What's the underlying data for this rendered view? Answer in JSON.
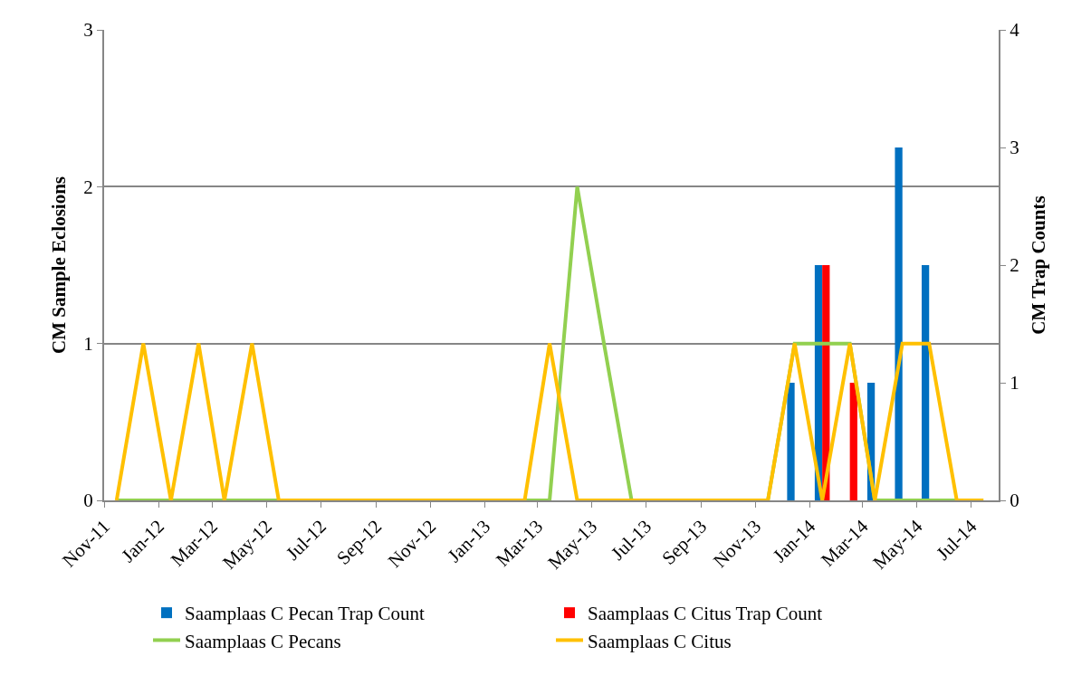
{
  "chart_data": {
    "type": "line",
    "ylabel": "CM Sample Eclosions",
    "y2label": "CM Trap Counts",
    "xlim": [
      "2011-11-01",
      "2014-08-01"
    ],
    "xticks": [
      {
        "value": "2011-11-01",
        "label": "Nov-11"
      },
      {
        "value": "2012-01-01",
        "label": "Jan-12"
      },
      {
        "value": "2012-03-01",
        "label": "Mar-12"
      },
      {
        "value": "2012-05-01",
        "label": "May-12"
      },
      {
        "value": "2012-07-01",
        "label": "Jul-12"
      },
      {
        "value": "2012-09-01",
        "label": "Sep-12"
      },
      {
        "value": "2012-11-01",
        "label": "Nov-12"
      },
      {
        "value": "2013-01-01",
        "label": "Jan-13"
      },
      {
        "value": "2013-03-01",
        "label": "Mar-13"
      },
      {
        "value": "2013-05-01",
        "label": "May-13"
      },
      {
        "value": "2013-07-01",
        "label": "Jul-13"
      },
      {
        "value": "2013-09-01",
        "label": "Sep-13"
      },
      {
        "value": "2013-11-01",
        "label": "Nov-13"
      },
      {
        "value": "2014-01-01",
        "label": "Jan-14"
      },
      {
        "value": "2014-03-01",
        "label": "Mar-14"
      },
      {
        "value": "2014-05-01",
        "label": "May-14"
      },
      {
        "value": "2014-07-01",
        "label": "Jul-14"
      }
    ],
    "ylim": [
      0,
      3
    ],
    "yticks": [
      0,
      1,
      2,
      3
    ],
    "y2lim": [
      0,
      4
    ],
    "y2ticks": [
      0,
      1,
      2,
      3,
      4
    ],
    "grid": "y",
    "legend": "bottom",
    "marker": "none",
    "line_style": "solid",
    "series": [
      {
        "name": "Saamplaas C Pecan Trap Count",
        "type": "bar",
        "axis": "y2",
        "color": "#0070c0",
        "x": [
          "2013-12-15",
          "2014-01-15",
          "2014-02-15",
          "2014-03-15",
          "2014-04-15",
          "2014-05-15"
        ],
        "values": [
          1,
          2,
          0,
          1,
          3,
          2
        ]
      },
      {
        "name": "Saamplaas C Citus Trap Count",
        "type": "bar",
        "axis": "y2",
        "color": "#ff0000",
        "x": [
          "2013-12-15",
          "2014-01-15",
          "2014-02-15",
          "2014-03-15",
          "2014-04-15",
          "2014-05-15"
        ],
        "values": [
          0,
          2,
          1,
          0,
          0,
          0
        ]
      },
      {
        "name": "Saamplaas C Pecans",
        "color": "#92d050",
        "x": [
          "2011-11-15",
          "2011-12-15",
          "2012-01-15",
          "2012-02-15",
          "2012-03-15",
          "2012-04-15",
          "2012-05-15",
          "2012-06-15",
          "2012-07-15",
          "2012-08-15",
          "2012-09-15",
          "2012-10-15",
          "2012-11-15",
          "2012-12-15",
          "2013-01-15",
          "2013-02-15",
          "2013-03-15",
          "2013-04-15",
          "2013-05-15",
          "2013-06-15",
          "2013-07-15",
          "2013-08-15",
          "2013-09-15",
          "2013-10-15",
          "2013-11-15",
          "2013-12-15",
          "2014-01-15",
          "2014-02-15",
          "2014-03-15",
          "2014-04-15",
          "2014-05-15",
          "2014-06-15"
        ],
        "values": [
          0,
          0,
          0,
          0,
          0,
          0,
          0,
          0,
          0,
          0,
          0,
          0,
          0,
          0,
          0,
          0,
          0,
          2,
          1,
          0,
          0,
          0,
          0,
          0,
          0,
          1,
          1,
          1,
          0,
          0,
          0,
          0
        ]
      },
      {
        "name": "Saamplaas C Citus",
        "color": "#ffc000",
        "x": [
          "2011-11-15",
          "2011-12-15",
          "2012-01-15",
          "2012-02-15",
          "2012-03-15",
          "2012-04-15",
          "2012-05-15",
          "2012-06-15",
          "2012-07-15",
          "2012-08-15",
          "2012-09-15",
          "2012-10-15",
          "2012-11-15",
          "2012-12-15",
          "2013-01-15",
          "2013-02-15",
          "2013-03-15",
          "2013-04-15",
          "2013-05-15",
          "2013-06-15",
          "2013-07-15",
          "2013-08-15",
          "2013-09-15",
          "2013-10-15",
          "2013-11-15",
          "2013-12-15",
          "2014-01-15",
          "2014-02-15",
          "2014-03-15",
          "2014-04-15",
          "2014-05-15",
          "2014-06-15",
          "2014-07-15"
        ],
        "values": [
          0,
          1,
          0,
          1,
          0,
          1,
          0,
          0,
          0,
          0,
          0,
          0,
          0,
          0,
          0,
          0,
          1,
          0,
          0,
          0,
          0,
          0,
          0,
          0,
          0,
          1,
          0,
          1,
          0,
          1,
          1,
          0,
          0
        ]
      }
    ]
  }
}
